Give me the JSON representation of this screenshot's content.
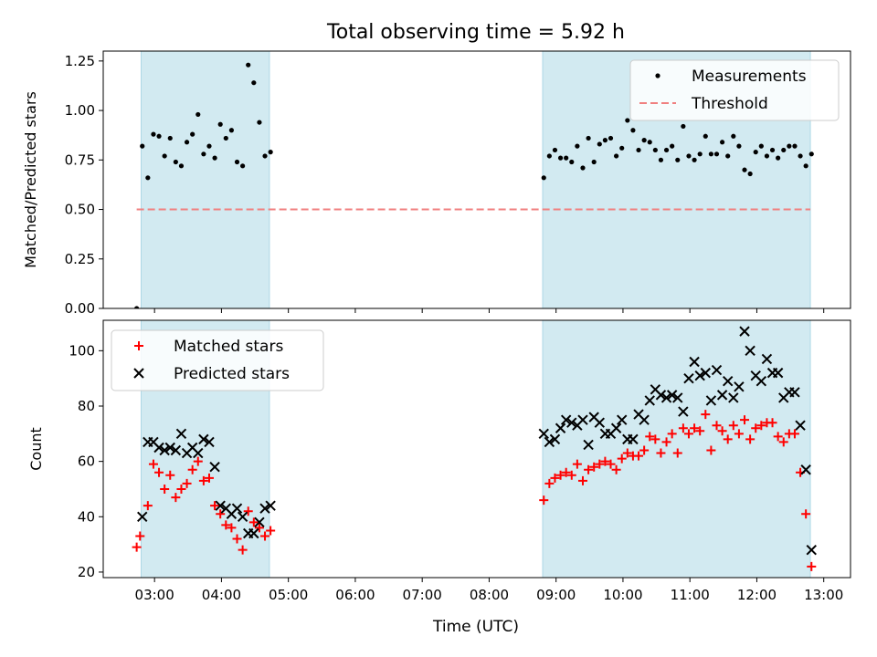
{
  "figure": {
    "title": "Total observing time = 5.92 h",
    "xlabel": "Time (UTC)"
  },
  "colors": {
    "band": "#add8e6",
    "measurement": "#000000",
    "threshold": "#f08080",
    "matched": "#ff0000",
    "predicted": "#000000"
  },
  "chart_data": [
    {
      "type": "scatter",
      "ylabel": "Matched/Predicted stars",
      "xlim": [
        "02:14",
        "13:24"
      ],
      "ylim": [
        0,
        1.3
      ],
      "x_ticks": [
        "03:00",
        "04:00",
        "05:00",
        "06:00",
        "07:00",
        "08:00",
        "09:00",
        "10:00",
        "11:00",
        "12:00",
        "13:00"
      ],
      "y_ticks": [
        "0.00",
        "0.25",
        "0.50",
        "0.75",
        "1.00",
        "1.25"
      ],
      "shaded_intervals": [
        [
          "02:48",
          "04:43"
        ],
        [
          "08:48",
          "12:48"
        ]
      ],
      "legend": {
        "position": "top-right",
        "entries": [
          "Measurements",
          "Threshold"
        ]
      },
      "threshold": {
        "name": "Threshold",
        "y": 0.5,
        "x_range": [
          "02:44",
          "12:48"
        ],
        "style": "dashed"
      },
      "series": [
        {
          "name": "Measurements",
          "marker": "dot",
          "points": [
            [
              "02:44",
              0.0
            ],
            [
              "02:49",
              0.82
            ],
            [
              "02:54",
              0.66
            ],
            [
              "02:59",
              0.88
            ],
            [
              "03:04",
              0.87
            ],
            [
              "03:09",
              0.77
            ],
            [
              "03:14",
              0.86
            ],
            [
              "03:19",
              0.74
            ],
            [
              "03:24",
              0.72
            ],
            [
              "03:29",
              0.84
            ],
            [
              "03:34",
              0.88
            ],
            [
              "03:39",
              0.98
            ],
            [
              "03:44",
              0.78
            ],
            [
              "03:49",
              0.82
            ],
            [
              "03:54",
              0.76
            ],
            [
              "03:59",
              0.93
            ],
            [
              "04:04",
              0.86
            ],
            [
              "04:09",
              0.9
            ],
            [
              "04:14",
              0.74
            ],
            [
              "04:19",
              0.72
            ],
            [
              "04:24",
              1.23
            ],
            [
              "04:29",
              1.14
            ],
            [
              "04:34",
              0.94
            ],
            [
              "04:39",
              0.77
            ],
            [
              "04:44",
              0.79
            ],
            [
              "08:49",
              0.66
            ],
            [
              "08:54",
              0.77
            ],
            [
              "08:59",
              0.8
            ],
            [
              "09:04",
              0.76
            ],
            [
              "09:09",
              0.76
            ],
            [
              "09:14",
              0.74
            ],
            [
              "09:19",
              0.82
            ],
            [
              "09:24",
              0.71
            ],
            [
              "09:29",
              0.86
            ],
            [
              "09:34",
              0.74
            ],
            [
              "09:39",
              0.83
            ],
            [
              "09:44",
              0.85
            ],
            [
              "09:49",
              0.86
            ],
            [
              "09:54",
              0.77
            ],
            [
              "09:59",
              0.81
            ],
            [
              "10:04",
              0.95
            ],
            [
              "10:09",
              0.9
            ],
            [
              "10:14",
              0.8
            ],
            [
              "10:19",
              0.85
            ],
            [
              "10:24",
              0.84
            ],
            [
              "10:29",
              0.8
            ],
            [
              "10:34",
              0.75
            ],
            [
              "10:39",
              0.8
            ],
            [
              "10:44",
              0.82
            ],
            [
              "10:49",
              0.75
            ],
            [
              "10:54",
              0.92
            ],
            [
              "10:59",
              0.77
            ],
            [
              "11:04",
              0.75
            ],
            [
              "11:09",
              0.78
            ],
            [
              "11:14",
              0.87
            ],
            [
              "11:19",
              0.78
            ],
            [
              "11:24",
              0.78
            ],
            [
              "11:29",
              0.84
            ],
            [
              "11:34",
              0.77
            ],
            [
              "11:39",
              0.87
            ],
            [
              "11:44",
              0.82
            ],
            [
              "11:49",
              0.7
            ],
            [
              "11:54",
              0.68
            ],
            [
              "11:59",
              0.79
            ],
            [
              "12:04",
              0.82
            ],
            [
              "12:09",
              0.77
            ],
            [
              "12:14",
              0.8
            ],
            [
              "12:19",
              0.76
            ],
            [
              "12:24",
              0.8
            ],
            [
              "12:29",
              0.82
            ],
            [
              "12:34",
              0.82
            ],
            [
              "12:39",
              0.77
            ],
            [
              "12:44",
              0.72
            ],
            [
              "12:49",
              0.78
            ]
          ]
        }
      ]
    },
    {
      "type": "scatter",
      "ylabel": "Count",
      "xlim": [
        "02:14",
        "13:24"
      ],
      "ylim": [
        18,
        111
      ],
      "x_ticks": [
        "03:00",
        "04:00",
        "05:00",
        "06:00",
        "07:00",
        "08:00",
        "09:00",
        "10:00",
        "11:00",
        "12:00",
        "13:00"
      ],
      "y_ticks": [
        "20",
        "40",
        "60",
        "80",
        "100"
      ],
      "shaded_intervals": [
        [
          "02:48",
          "04:43"
        ],
        [
          "08:48",
          "12:48"
        ]
      ],
      "legend": {
        "position": "top-left",
        "entries": [
          "Matched stars",
          "Predicted stars"
        ]
      },
      "series": [
        {
          "name": "Matched stars",
          "marker": "plus",
          "points": [
            [
              "02:44",
              29
            ],
            [
              "02:47",
              33
            ],
            [
              "02:54",
              44
            ],
            [
              "02:59",
              59
            ],
            [
              "03:04",
              56
            ],
            [
              "03:09",
              50
            ],
            [
              "03:14",
              55
            ],
            [
              "03:19",
              47
            ],
            [
              "03:24",
              50
            ],
            [
              "03:29",
              52
            ],
            [
              "03:34",
              57
            ],
            [
              "03:39",
              60
            ],
            [
              "03:44",
              53
            ],
            [
              "03:49",
              54
            ],
            [
              "03:54",
              44
            ],
            [
              "03:59",
              41
            ],
            [
              "04:04",
              37
            ],
            [
              "04:09",
              36
            ],
            [
              "04:14",
              32
            ],
            [
              "04:19",
              28
            ],
            [
              "04:24",
              42
            ],
            [
              "04:29",
              38
            ],
            [
              "04:34",
              36
            ],
            [
              "04:39",
              33
            ],
            [
              "04:44",
              35
            ],
            [
              "08:49",
              46
            ],
            [
              "08:54",
              52
            ],
            [
              "08:59",
              54
            ],
            [
              "09:04",
              55
            ],
            [
              "09:09",
              56
            ],
            [
              "09:14",
              55
            ],
            [
              "09:19",
              59
            ],
            [
              "09:24",
              53
            ],
            [
              "09:29",
              57
            ],
            [
              "09:34",
              58
            ],
            [
              "09:39",
              59
            ],
            [
              "09:44",
              60
            ],
            [
              "09:49",
              59
            ],
            [
              "09:54",
              57
            ],
            [
              "09:59",
              61
            ],
            [
              "10:04",
              63
            ],
            [
              "10:09",
              62
            ],
            [
              "10:14",
              62
            ],
            [
              "10:19",
              64
            ],
            [
              "10:24",
              69
            ],
            [
              "10:29",
              68
            ],
            [
              "10:34",
              63
            ],
            [
              "10:39",
              67
            ],
            [
              "10:44",
              70
            ],
            [
              "10:49",
              63
            ],
            [
              "10:54",
              72
            ],
            [
              "10:59",
              70
            ],
            [
              "11:04",
              72
            ],
            [
              "11:09",
              71
            ],
            [
              "11:14",
              77
            ],
            [
              "11:19",
              64
            ],
            [
              "11:24",
              73
            ],
            [
              "11:29",
              71
            ],
            [
              "11:34",
              68
            ],
            [
              "11:39",
              73
            ],
            [
              "11:44",
              70
            ],
            [
              "11:49",
              75
            ],
            [
              "11:54",
              68
            ],
            [
              "11:59",
              72
            ],
            [
              "12:04",
              73
            ],
            [
              "12:09",
              74
            ],
            [
              "12:14",
              74
            ],
            [
              "12:19",
              69
            ],
            [
              "12:24",
              67
            ],
            [
              "12:29",
              70
            ],
            [
              "12:34",
              70
            ],
            [
              "12:39",
              56
            ],
            [
              "12:44",
              41
            ],
            [
              "12:49",
              22
            ]
          ]
        },
        {
          "name": "Predicted stars",
          "marker": "x",
          "points": [
            [
              "02:49",
              40
            ],
            [
              "02:54",
              67
            ],
            [
              "02:59",
              67
            ],
            [
              "03:04",
              65
            ],
            [
              "03:09",
              64
            ],
            [
              "03:14",
              65
            ],
            [
              "03:19",
              64
            ],
            [
              "03:24",
              70
            ],
            [
              "03:29",
              63
            ],
            [
              "03:34",
              65
            ],
            [
              "03:39",
              63
            ],
            [
              "03:44",
              68
            ],
            [
              "03:49",
              67
            ],
            [
              "03:54",
              58
            ],
            [
              "03:59",
              44
            ],
            [
              "04:04",
              43
            ],
            [
              "04:09",
              41
            ],
            [
              "04:14",
              43
            ],
            [
              "04:19",
              40
            ],
            [
              "04:24",
              34
            ],
            [
              "04:29",
              34
            ],
            [
              "04:34",
              38
            ],
            [
              "04:39",
              43
            ],
            [
              "04:44",
              44
            ],
            [
              "08:49",
              70
            ],
            [
              "08:54",
              67
            ],
            [
              "08:59",
              68
            ],
            [
              "09:04",
              72
            ],
            [
              "09:09",
              75
            ],
            [
              "09:14",
              74
            ],
            [
              "09:19",
              73
            ],
            [
              "09:24",
              75
            ],
            [
              "09:29",
              66
            ],
            [
              "09:34",
              76
            ],
            [
              "09:39",
              74
            ],
            [
              "09:44",
              70
            ],
            [
              "09:49",
              70
            ],
            [
              "09:54",
              72
            ],
            [
              "09:59",
              75
            ],
            [
              "10:04",
              68
            ],
            [
              "10:09",
              68
            ],
            [
              "10:14",
              77
            ],
            [
              "10:19",
              75
            ],
            [
              "10:24",
              82
            ],
            [
              "10:29",
              86
            ],
            [
              "10:34",
              84
            ],
            [
              "10:39",
              83
            ],
            [
              "10:44",
              84
            ],
            [
              "10:49",
              83
            ],
            [
              "10:54",
              78
            ],
            [
              "10:59",
              90
            ],
            [
              "11:04",
              96
            ],
            [
              "11:09",
              91
            ],
            [
              "11:14",
              92
            ],
            [
              "11:19",
              82
            ],
            [
              "11:24",
              93
            ],
            [
              "11:29",
              84
            ],
            [
              "11:34",
              89
            ],
            [
              "11:39",
              83
            ],
            [
              "11:44",
              87
            ],
            [
              "11:49",
              107
            ],
            [
              "11:54",
              100
            ],
            [
              "11:59",
              91
            ],
            [
              "12:04",
              89
            ],
            [
              "12:09",
              97
            ],
            [
              "12:14",
              92
            ],
            [
              "12:19",
              92
            ],
            [
              "12:24",
              83
            ],
            [
              "12:29",
              85
            ],
            [
              "12:34",
              85
            ],
            [
              "12:39",
              73
            ],
            [
              "12:44",
              57
            ],
            [
              "12:49",
              28
            ]
          ]
        }
      ]
    }
  ]
}
